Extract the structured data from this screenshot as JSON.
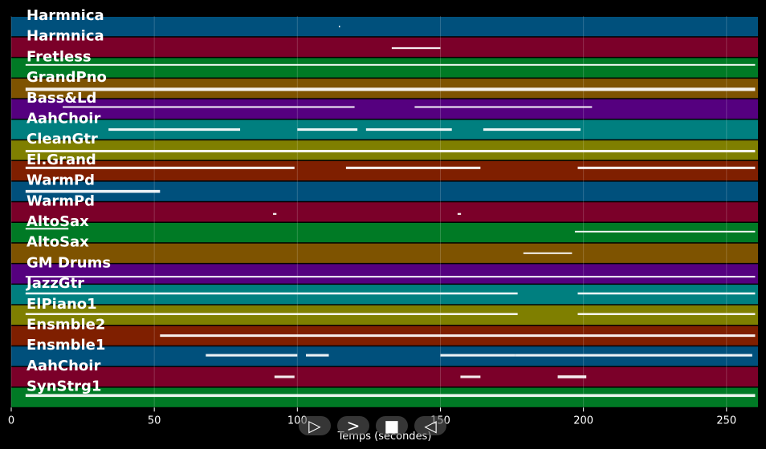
{
  "chart_data": {
    "type": "piano-roll",
    "xlabel": "Temps (secondes)",
    "xlim": [
      0,
      261
    ],
    "xticks": [
      0,
      50,
      100,
      150,
      200,
      250
    ],
    "grid": true,
    "tracks": [
      {
        "name": "Harmnica",
        "color": "#00507c",
        "notes": [
          [
            114.5,
            0.4,
            0.5,
            0.2
          ]
        ]
      },
      {
        "name": "Harmnica",
        "color": "#7b0029",
        "notes": [
          [
            133,
            17,
            0.55,
            0.22
          ]
        ]
      },
      {
        "name": "Fretless",
        "color": "#007a25",
        "notes": [
          [
            5,
            255,
            0.35,
            0.2
          ]
        ]
      },
      {
        "name": "GrandPno",
        "color": "#7e5300",
        "notes": [
          [
            5,
            255,
            0.55,
            0.4
          ]
        ]
      },
      {
        "name": "Bass&Ld",
        "color": "#55007f",
        "notes": [
          [
            18,
            102,
            0.4,
            0.2
          ],
          [
            141,
            62,
            0.4,
            0.2
          ]
        ]
      },
      {
        "name": "AahChoir",
        "color": "#007f7f",
        "notes": [
          [
            34,
            46,
            0.5,
            0.3
          ],
          [
            100,
            21,
            0.5,
            0.3
          ],
          [
            124,
            30,
            0.5,
            0.3
          ],
          [
            165,
            34,
            0.5,
            0.3
          ]
        ]
      },
      {
        "name": "CleanGtr",
        "color": "#7f7f00",
        "notes": [
          [
            5,
            255,
            0.55,
            0.3
          ]
        ]
      },
      {
        "name": "El.Grand",
        "color": "#7f1f00",
        "notes": [
          [
            5,
            94,
            0.35,
            0.3
          ],
          [
            117,
            47,
            0.35,
            0.3
          ],
          [
            198,
            62,
            0.35,
            0.3
          ]
        ]
      },
      {
        "name": "WarmPd",
        "color": "#00507c",
        "notes": [
          [
            5,
            47,
            0.5,
            0.35
          ]
        ]
      },
      {
        "name": "WarmPd",
        "color": "#7b0029",
        "notes": [
          [
            91.5,
            1.2,
            0.6,
            0.22
          ],
          [
            156,
            1.2,
            0.6,
            0.22
          ]
        ]
      },
      {
        "name": "AltoSax",
        "color": "#007a25",
        "notes": [
          [
            5,
            15,
            0.3,
            0.2
          ],
          [
            197,
            63,
            0.45,
            0.2
          ]
        ]
      },
      {
        "name": "AltoSax",
        "color": "#7e5300",
        "notes": [
          [
            179,
            17,
            0.5,
            0.2
          ]
        ]
      },
      {
        "name": "GM Drums",
        "color": "#55007f",
        "notes": [
          [
            5,
            255,
            0.65,
            0.2
          ]
        ]
      },
      {
        "name": "JazzGtr",
        "color": "#007f7f",
        "notes": [
          [
            5,
            172,
            0.45,
            0.25
          ],
          [
            198,
            62,
            0.45,
            0.25
          ]
        ]
      },
      {
        "name": "ElPiano1",
        "color": "#7f7f00",
        "notes": [
          [
            5,
            172,
            0.45,
            0.25
          ],
          [
            198,
            62,
            0.45,
            0.25
          ]
        ]
      },
      {
        "name": "Ensmble2",
        "color": "#7f1f00",
        "notes": [
          [
            52,
            208,
            0.5,
            0.3
          ]
        ]
      },
      {
        "name": "Ensmble1",
        "color": "#00507c",
        "notes": [
          [
            68,
            32,
            0.45,
            0.3
          ],
          [
            103,
            8,
            0.45,
            0.3
          ],
          [
            150,
            26,
            0.45,
            0.3
          ],
          [
            176,
            83,
            0.45,
            0.3
          ]
        ]
      },
      {
        "name": "AahChoir",
        "color": "#7b0029",
        "notes": [
          [
            92,
            7,
            0.5,
            0.3
          ],
          [
            157,
            7,
            0.5,
            0.3
          ],
          [
            191,
            10,
            0.5,
            0.35
          ]
        ]
      },
      {
        "name": "SynStrg1",
        "color": "#007a25",
        "notes": [
          [
            5,
            255,
            0.4,
            0.35
          ]
        ]
      }
    ]
  },
  "controls": {
    "play_label": "▷",
    "next_label": ">",
    "stop_label": "■",
    "back_label": "◁"
  }
}
